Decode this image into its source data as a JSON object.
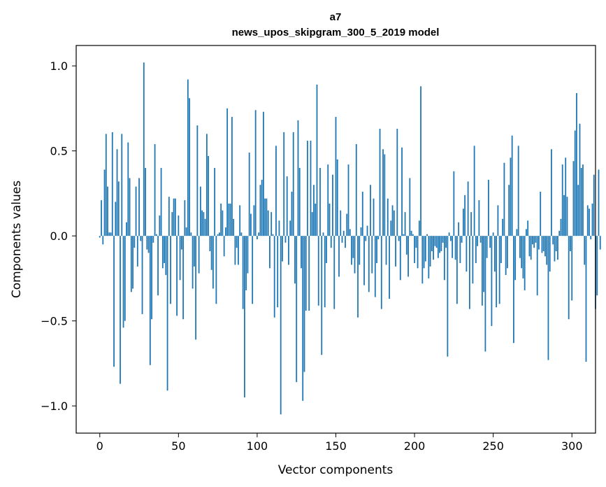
{
  "chart_data": {
    "type": "bar",
    "title": "a7",
    "subtitle": "news_upos_skipgram_300_5_2019 model",
    "xlabel": "Vector components",
    "ylabel": "Components values",
    "xlim": [
      -15,
      315
    ],
    "ylim": [
      -1.16,
      1.12
    ],
    "x_ticks": [
      0,
      50,
      100,
      150,
      200,
      250,
      300
    ],
    "x_tick_labels": [
      "0",
      "50",
      "100",
      "150",
      "200",
      "250",
      "300"
    ],
    "y_ticks": [
      -1.0,
      -0.5,
      0.0,
      0.5,
      1.0
    ],
    "y_tick_labels": [
      "−1.0",
      "−0.5",
      "0.0",
      "0.5",
      "1.0"
    ],
    "bar_color": "#1f77b4",
    "values": [
      -0.01,
      0.21,
      -0.05,
      0.39,
      0.6,
      0.29,
      0.02,
      0.02,
      0.61,
      -0.77,
      0.2,
      0.51,
      0.32,
      -0.87,
      0.6,
      -0.54,
      -0.5,
      0.08,
      0.55,
      0.34,
      -0.33,
      -0.31,
      -0.07,
      0.29,
      -0.18,
      0.34,
      -0.03,
      -0.46,
      1.02,
      0.4,
      -0.08,
      -0.1,
      -0.76,
      -0.49,
      -0.04,
      0.54,
      0.01,
      -0.35,
      0.12,
      0.4,
      -0.19,
      -0.16,
      -0.23,
      -0.91,
      0.23,
      -0.4,
      0.14,
      0.22,
      0.22,
      -0.47,
      0.12,
      -0.26,
      -0.08,
      -0.49,
      0.21,
      0.05,
      0.92,
      0.81,
      0.02,
      -0.31,
      -0.18,
      -0.61,
      0.65,
      -0.22,
      0.29,
      0.15,
      0.14,
      0.1,
      0.6,
      0.47,
      -0.09,
      -0.2,
      -0.31,
      0.4,
      -0.4,
      0.01,
      0.02,
      0.19,
      0.15,
      -0.12,
      0.05,
      0.75,
      0.19,
      0.19,
      0.7,
      0.1,
      -0.17,
      -0.07,
      -0.17,
      0.18,
      0.02,
      -0.43,
      -0.95,
      -0.32,
      -0.22,
      0.49,
      0.13,
      -0.4,
      0.18,
      0.74,
      -0.02,
      0.02,
      0.3,
      0.33,
      0.73,
      0.22,
      0.22,
      0.15,
      -0.19,
      0.14,
      0.01,
      -0.48,
      0.53,
      -0.42,
      0.09,
      -1.05,
      -0.15,
      0.61,
      -0.04,
      0.35,
      -0.17,
      0.09,
      0.26,
      0.61,
      -0.28,
      -0.86,
      0.68,
      0.4,
      -0.19,
      -0.97,
      -0.8,
      -0.44,
      0.56,
      -0.44,
      0.56,
      0.14,
      0.3,
      0.19,
      0.89,
      -0.41,
      0.4,
      -0.7,
      0.02,
      -0.42,
      -0.16,
      0.42,
      0.19,
      -0.07,
      0.36,
      -0.43,
      0.7,
      0.45,
      -0.24,
      0.15,
      -0.04,
      0.03,
      -0.07,
      0.13,
      0.42,
      0.04,
      -0.17,
      -0.13,
      -0.22,
      0.54,
      -0.48,
      -0.17,
      0.05,
      0.26,
      -0.29,
      -0.03,
      0.06,
      -0.33,
      0.3,
      -0.22,
      0.22,
      -0.36,
      -0.16,
      -0.02,
      0.63,
      -0.43,
      0.51,
      0.48,
      -0.17,
      0.22,
      -0.37,
      0.09,
      0.18,
      0.15,
      -0.18,
      0.63,
      -0.03,
      -0.26,
      0.52,
      0.01,
      0.14,
      -0.11,
      -0.24,
      0.34,
      0.03,
      0.01,
      -0.16,
      -0.07,
      -0.19,
      0.09,
      0.88,
      -0.28,
      -0.19,
      -0.15,
      0.01,
      -0.25,
      -0.18,
      -0.09,
      -0.14,
      -0.06,
      -0.07,
      -0.13,
      -0.1,
      -0.09,
      -0.04,
      -0.26,
      -0.07,
      -0.71,
      0.02,
      -0.03,
      -0.13,
      0.38,
      -0.14,
      -0.4,
      0.08,
      -0.16,
      -0.04,
      0.16,
      0.24,
      -0.21,
      0.32,
      -0.43,
      0.14,
      -0.28,
      0.53,
      -0.16,
      -0.06,
      0.21,
      -0.04,
      -0.41,
      -0.33,
      -0.68,
      -0.13,
      0.33,
      -0.07,
      -0.53,
      0.02,
      -0.21,
      -0.42,
      0.18,
      -0.4,
      -0.16,
      0.1,
      0.43,
      -0.23,
      -0.19,
      0.3,
      0.46,
      0.59,
      -0.63,
      -0.26,
      0.04,
      0.53,
      -0.13,
      -0.19,
      -0.25,
      -0.32,
      0.04,
      0.09,
      -0.12,
      -0.14,
      -0.05,
      -0.07,
      -0.04,
      -0.35,
      -0.08,
      0.26,
      -0.1,
      -0.09,
      -0.12,
      -0.17,
      -0.73,
      -0.21,
      0.51,
      -0.05,
      -0.15,
      -0.09,
      -0.14,
      0.03,
      0.1,
      0.42,
      0.24,
      0.46,
      0.23,
      -0.49,
      -0.09,
      -0.38,
      0.44,
      0.62,
      0.84,
      0.3,
      0.66,
      0.4,
      0.42,
      -0.17,
      -0.74,
      0.18,
      0.16,
      -0.02,
      0.19,
      0.36,
      -0.43,
      -0.35,
      0.39,
      -0.08
    ]
  }
}
